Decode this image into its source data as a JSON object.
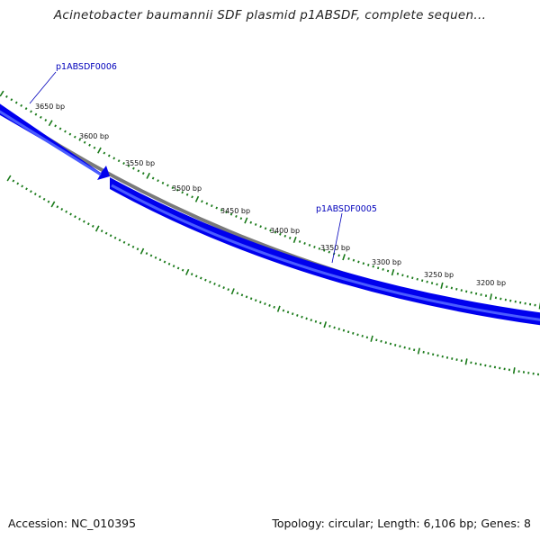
{
  "title": "Acinetobacter baumannii SDF plasmid p1ABSDF, complete sequen...",
  "accession": "Accession: NC_010395",
  "summary": "Topology: circular; Length: 6,106 bp; Genes: 8",
  "ticks": [
    "3650 bp",
    "3600 bp",
    "3550 bp",
    "3500 bp",
    "3450 bp",
    "3400 bp",
    "3350 bp",
    "3300 bp",
    "3250 bp",
    "3200 bp"
  ],
  "genes": [
    {
      "name": "p1ABSDF0006"
    },
    {
      "name": "p1ABSDF0005"
    }
  ],
  "colors": {
    "gene": "#0000ee",
    "gene_highlight": "#4a5cff",
    "backbone": "#7a7a7a",
    "ticks": "#1a7a1a",
    "gene_label": "#0000bb"
  }
}
